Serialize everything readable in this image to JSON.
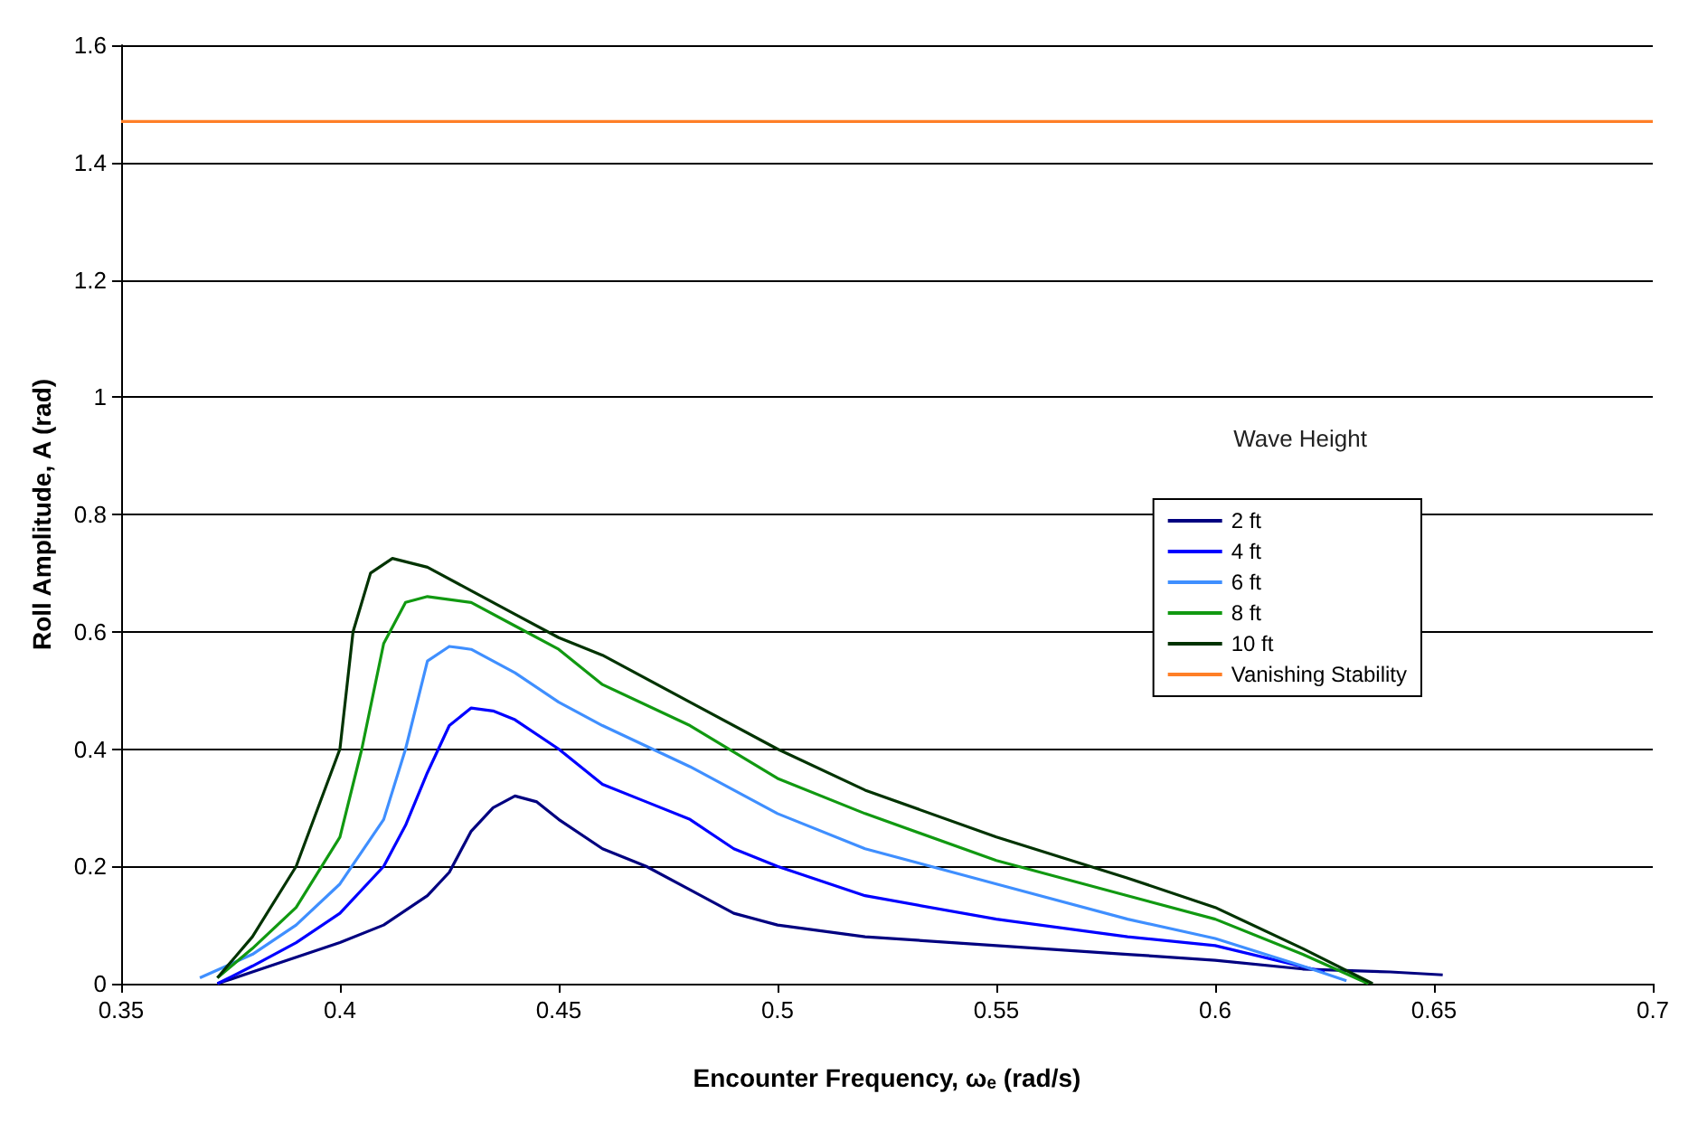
{
  "chart_data": {
    "type": "line",
    "xlabel": "Encounter Frequency, ωₑ (rad/s)",
    "ylabel": "Roll Amplitude, A (rad)",
    "legend_title": "Wave Height",
    "legend": "right",
    "grid": "y",
    "xlim": [
      0.35,
      0.7
    ],
    "xticks": [
      0.35,
      0.4,
      0.45,
      0.5,
      0.55,
      0.6,
      0.65,
      0.7
    ],
    "ylim": [
      0,
      1.6
    ],
    "yticks": [
      0,
      0.2,
      0.4,
      0.6,
      0.8,
      1,
      1.2,
      1.4,
      1.6
    ],
    "series": [
      {
        "name": "2 ft",
        "color": "#000080",
        "x": [
          0.372,
          0.38,
          0.39,
          0.4,
          0.41,
          0.42,
          0.425,
          0.43,
          0.435,
          0.44,
          0.445,
          0.45,
          0.46,
          0.47,
          0.48,
          0.49,
          0.5,
          0.51,
          0.52,
          0.55,
          0.58,
          0.6,
          0.62,
          0.64,
          0.652
        ],
        "values": [
          0,
          0.02,
          0.045,
          0.07,
          0.1,
          0.15,
          0.19,
          0.26,
          0.3,
          0.32,
          0.31,
          0.28,
          0.23,
          0.2,
          0.16,
          0.12,
          0.1,
          0.09,
          0.08,
          0.065,
          0.05,
          0.04,
          0.025,
          0.02,
          0.015
        ]
      },
      {
        "name": "4 ft",
        "color": "#0000ff",
        "x": [
          0.372,
          0.38,
          0.39,
          0.4,
          0.41,
          0.415,
          0.42,
          0.425,
          0.43,
          0.435,
          0.44,
          0.45,
          0.46,
          0.47,
          0.48,
          0.49,
          0.5,
          0.52,
          0.55,
          0.58,
          0.6,
          0.625
        ],
        "values": [
          0,
          0.03,
          0.07,
          0.12,
          0.2,
          0.27,
          0.36,
          0.44,
          0.47,
          0.465,
          0.45,
          0.4,
          0.34,
          0.31,
          0.28,
          0.23,
          0.2,
          0.15,
          0.11,
          0.08,
          0.065,
          0.02
        ]
      },
      {
        "name": "6 ft",
        "color": "#3f8fff",
        "x": [
          0.368,
          0.38,
          0.39,
          0.4,
          0.41,
          0.415,
          0.42,
          0.425,
          0.43,
          0.44,
          0.45,
          0.46,
          0.48,
          0.5,
          0.52,
          0.55,
          0.58,
          0.6,
          0.62,
          0.63
        ],
        "values": [
          0.01,
          0.05,
          0.1,
          0.17,
          0.28,
          0.4,
          0.55,
          0.575,
          0.57,
          0.53,
          0.48,
          0.44,
          0.37,
          0.29,
          0.23,
          0.17,
          0.11,
          0.077,
          0.03,
          0.005
        ]
      },
      {
        "name": "8 ft",
        "color": "#119911",
        "x": [
          0.372,
          0.38,
          0.39,
          0.4,
          0.405,
          0.41,
          0.415,
          0.42,
          0.43,
          0.44,
          0.45,
          0.46,
          0.48,
          0.5,
          0.52,
          0.55,
          0.58,
          0.6,
          0.62,
          0.635
        ],
        "values": [
          0.01,
          0.06,
          0.13,
          0.25,
          0.4,
          0.58,
          0.65,
          0.66,
          0.65,
          0.61,
          0.57,
          0.51,
          0.44,
          0.35,
          0.29,
          0.21,
          0.15,
          0.11,
          0.05,
          0
        ]
      },
      {
        "name": "10 ft",
        "color": "#003300",
        "x": [
          0.372,
          0.38,
          0.39,
          0.4,
          0.403,
          0.407,
          0.412,
          0.42,
          0.43,
          0.44,
          0.45,
          0.46,
          0.48,
          0.5,
          0.52,
          0.55,
          0.58,
          0.6,
          0.62,
          0.636
        ],
        "values": [
          0.01,
          0.08,
          0.2,
          0.4,
          0.6,
          0.7,
          0.725,
          0.71,
          0.67,
          0.63,
          0.59,
          0.56,
          0.48,
          0.4,
          0.33,
          0.25,
          0.18,
          0.13,
          0.06,
          0
        ]
      },
      {
        "name": "Vanishing Stability",
        "color": "#ff7f27",
        "x": [
          0.35,
          0.7
        ],
        "values": [
          1.47,
          1.47
        ]
      }
    ]
  }
}
